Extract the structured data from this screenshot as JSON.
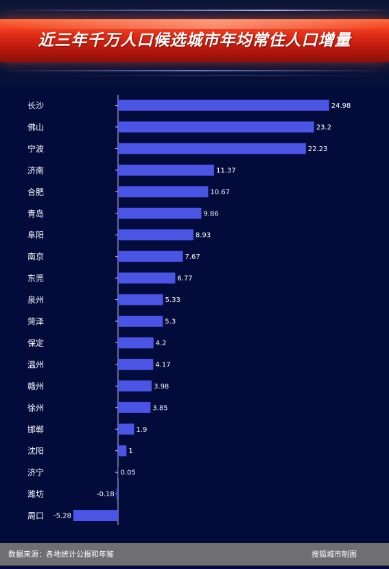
{
  "title": "近三年千万人口候选城市年均常住人口增量",
  "footer": {
    "source": "数据来源：各地统计公报和年鉴",
    "credit": "搜狐城市制图"
  },
  "colors": {
    "background": "#020b3a",
    "bar": "#4a55e6",
    "banner": "#d8291a",
    "footer": "#6f6f71"
  },
  "chart_data": {
    "type": "bar",
    "orientation": "horizontal",
    "categories": [
      "长沙",
      "佛山",
      "宁波",
      "济南",
      "合肥",
      "青岛",
      "阜阳",
      "南京",
      "东莞",
      "泉州",
      "菏泽",
      "保定",
      "温州",
      "赣州",
      "徐州",
      "邯郸",
      "沈阳",
      "济宁",
      "潍坊",
      "周口"
    ],
    "values": [
      24.98,
      23.2,
      22.23,
      11.37,
      10.67,
      9.86,
      8.93,
      7.67,
      6.77,
      5.33,
      5.3,
      4.2,
      4.17,
      3.98,
      3.85,
      1.9,
      1,
      0.05,
      -0.18,
      -5.28
    ],
    "labels": [
      "24.98",
      "23.2",
      "22.23",
      "11.37",
      "10.67",
      "9.86",
      "8.93",
      "7.67",
      "6.77",
      "5.33",
      "5.3",
      "4.2",
      "4.17",
      "3.98",
      "3.85",
      "1.9",
      "1",
      "0.05",
      "-0.18",
      "-5.28"
    ],
    "xlim": [
      -5.28,
      24.98
    ],
    "grid": false,
    "legend": false
  }
}
